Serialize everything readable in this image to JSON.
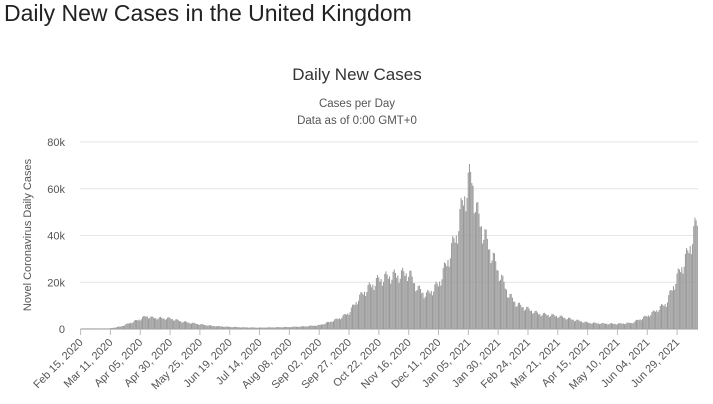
{
  "page": {
    "title": "Daily New Cases in the United Kingdom"
  },
  "chart_data": {
    "type": "bar",
    "title": "Daily New Cases",
    "subtitles": [
      "Cases per Day",
      "Data as of 0:00 GMT+0"
    ],
    "ylabel": "Novel Coronavirus Daily Cases",
    "xlabel": "",
    "ylim": [
      0,
      80000
    ],
    "yticks": [
      0,
      20000,
      40000,
      60000,
      80000
    ],
    "ytick_labels": [
      "0",
      "20k",
      "40k",
      "60k",
      "80k"
    ],
    "grid": true,
    "legend": "none",
    "bar_color": "#999999",
    "x_range": [
      "2020-02-15",
      "2021-07-16"
    ],
    "x_tick_labels": [
      "Feb 15, 2020",
      "Mar 11, 2020",
      "Apr 05, 2020",
      "Apr 30, 2020",
      "May 25, 2020",
      "Jun 19, 2020",
      "Jul 14, 2020",
      "Aug 08, 2020",
      "Sep 02, 2020",
      "Sep 27, 2020",
      "Oct 22, 2020",
      "Nov 16, 2020",
      "Dec 11, 2020",
      "Jan 05, 2021",
      "Jan 30, 2021",
      "Feb 24, 2021",
      "Mar 21, 2021",
      "Apr 15, 2021",
      "May 10, 2021",
      "Jun 04, 2021",
      "Jun 29, 2021"
    ],
    "x_tick_dates": [
      "2020-02-15",
      "2020-03-11",
      "2020-04-05",
      "2020-04-30",
      "2020-05-25",
      "2020-06-19",
      "2020-07-14",
      "2020-08-08",
      "2020-09-02",
      "2020-09-27",
      "2020-10-22",
      "2020-11-16",
      "2020-12-11",
      "2021-01-05",
      "2021-01-30",
      "2021-02-24",
      "2021-03-21",
      "2021-04-15",
      "2021-05-10",
      "2021-06-04",
      "2021-06-29"
    ],
    "series": [
      {
        "name": "",
        "anchor_points": [
          [
            "2020-02-15",
            0
          ],
          [
            "2020-03-01",
            20
          ],
          [
            "2020-03-11",
            300
          ],
          [
            "2020-03-20",
            1100
          ],
          [
            "2020-03-28",
            2700
          ],
          [
            "2020-04-05",
            4200
          ],
          [
            "2020-04-10",
            5500
          ],
          [
            "2020-04-15",
            4800
          ],
          [
            "2020-04-22",
            4600
          ],
          [
            "2020-04-30",
            4500
          ],
          [
            "2020-05-10",
            3200
          ],
          [
            "2020-05-25",
            2000
          ],
          [
            "2020-06-05",
            1300
          ],
          [
            "2020-06-19",
            900
          ],
          [
            "2020-07-01",
            700
          ],
          [
            "2020-07-14",
            600
          ],
          [
            "2020-07-25",
            700
          ],
          [
            "2020-08-08",
            850
          ],
          [
            "2020-08-20",
            1100
          ],
          [
            "2020-09-02",
            1600
          ],
          [
            "2020-09-12",
            3200
          ],
          [
            "2020-09-20",
            4800
          ],
          [
            "2020-09-27",
            7000
          ],
          [
            "2020-10-05",
            13000
          ],
          [
            "2020-10-12",
            17000
          ],
          [
            "2020-10-22",
            21000
          ],
          [
            "2020-10-31",
            22500
          ],
          [
            "2020-11-08",
            23000
          ],
          [
            "2020-11-16",
            24000
          ],
          [
            "2020-11-24",
            17000
          ],
          [
            "2020-12-01",
            14500
          ],
          [
            "2020-12-11",
            19000
          ],
          [
            "2020-12-18",
            28000
          ],
          [
            "2020-12-26",
            40000
          ],
          [
            "2021-01-01",
            55000
          ],
          [
            "2021-01-05",
            62000
          ],
          [
            "2021-01-08",
            65000
          ],
          [
            "2021-01-12",
            50000
          ],
          [
            "2021-01-20",
            38000
          ],
          [
            "2021-01-30",
            25000
          ],
          [
            "2021-02-08",
            14500
          ],
          [
            "2021-02-15",
            10500
          ],
          [
            "2021-02-24",
            8500
          ],
          [
            "2021-03-05",
            6500
          ],
          [
            "2021-03-21",
            5500
          ],
          [
            "2021-04-01",
            4200
          ],
          [
            "2021-04-15",
            2700
          ],
          [
            "2021-04-28",
            2300
          ],
          [
            "2021-05-10",
            2200
          ],
          [
            "2021-05-22",
            2600
          ],
          [
            "2021-06-04",
            5500
          ],
          [
            "2021-06-12",
            8000
          ],
          [
            "2021-06-20",
            11000
          ],
          [
            "2021-06-29",
            22000
          ],
          [
            "2021-07-08",
            32000
          ],
          [
            "2021-07-16",
            46000
          ]
        ]
      }
    ]
  }
}
